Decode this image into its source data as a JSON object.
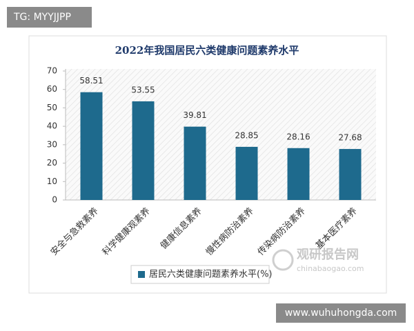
{
  "chart_data": {
    "type": "bar",
    "title": "2022年我国居民六类健康问题素养水平",
    "categories": [
      "安全与急救素养",
      "科学健康观素养",
      "健康信息素养",
      "慢性病防治素养",
      "传染病防治素养",
      "基本医疗素养"
    ],
    "series": [
      {
        "name": "居民六类健康问题素养水平(%)",
        "color": "#1e6a8d",
        "values": [
          58.51,
          53.55,
          39.81,
          28.85,
          28.16,
          27.68
        ]
      }
    ],
    "ylim": [
      0,
      70
    ],
    "yticks": [
      0,
      10,
      20,
      30,
      40,
      50,
      60,
      70
    ],
    "grid": false,
    "legend": "bottom"
  },
  "overlays": {
    "tag": "TG: MYYJJPP",
    "site": "www.wuhuhongda.com",
    "watermark": "观研报告网",
    "watermark_url": "chinabaogao.com"
  }
}
